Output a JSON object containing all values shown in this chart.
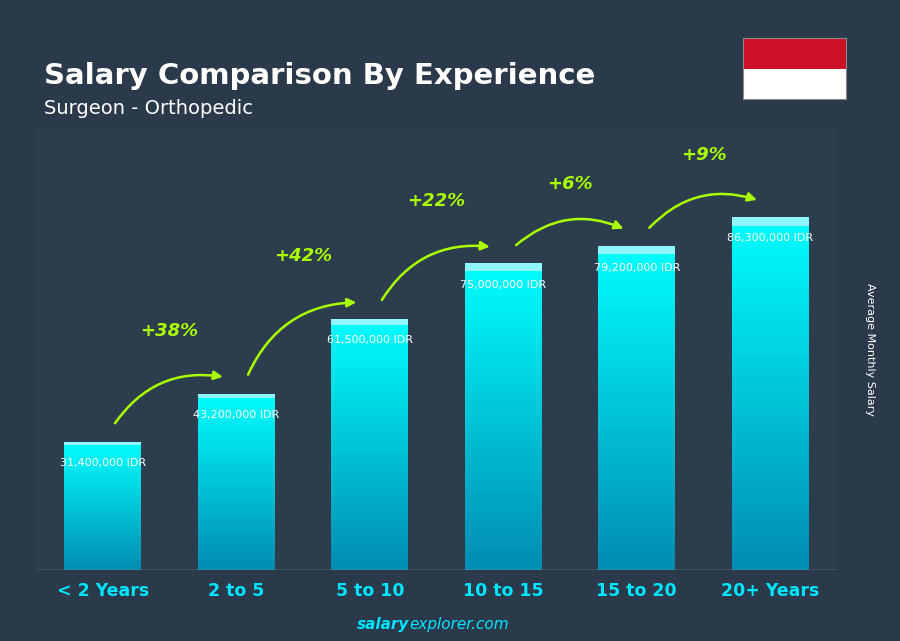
{
  "title": "Salary Comparison By Experience",
  "subtitle": "Surgeon - Orthopedic",
  "categories": [
    "< 2 Years",
    "2 to 5",
    "5 to 10",
    "10 to 15",
    "15 to 20",
    "20+ Years"
  ],
  "values": [
    31400000,
    43200000,
    61500000,
    75000000,
    79200000,
    86300000
  ],
  "salary_labels": [
    "31,400,000 IDR",
    "43,200,000 IDR",
    "61,500,000 IDR",
    "75,000,000 IDR",
    "79,200,000 IDR",
    "86,300,000 IDR"
  ],
  "pct_changes": [
    null,
    "+38%",
    "+42%",
    "+22%",
    "+6%",
    "+9%"
  ],
  "bg_color": "#2b3a4a",
  "title_color": "#ffffff",
  "subtitle_color": "#ffffff",
  "salary_label_color": "#ffffff",
  "pct_color": "#aaff00",
  "xtick_color": "#00e5ff",
  "footer_salary_bold": "salary",
  "footer_rest": "explorer.com",
  "footer_color": "#00e5ff",
  "ylabel_text": "Average Monthly Salary",
  "flag_red": "#ce1126",
  "flag_white": "#ffffff",
  "ylim_max": 100000000,
  "bar_color_top": "#00e5ff",
  "bar_color_bottom": "#0077aa"
}
